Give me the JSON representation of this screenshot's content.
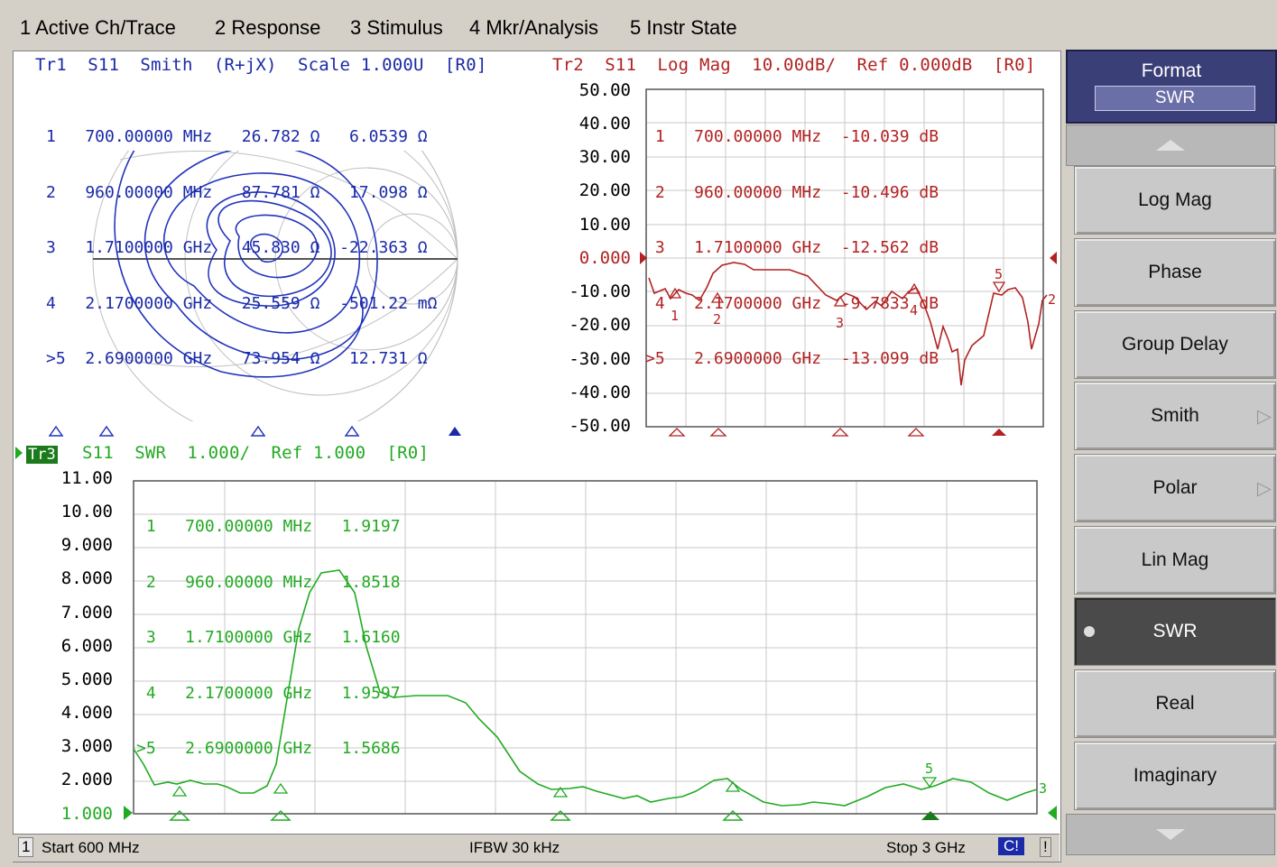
{
  "menu": [
    "1 Active Ch/Trace",
    "2 Response",
    "3 Stimulus",
    "4 Mkr/Analysis",
    "5 Instr State"
  ],
  "tr1": {
    "header": "Tr1  S11  Smith  (R+jX)  Scale 1.000U  [R0]",
    "markers": [
      "1   700.00000 MHz   26.782 Ω   6.0539 Ω",
      "2   960.00000 MHz   87.781 Ω   17.098 Ω",
      "3   1.7100000 GHz   45.830 Ω  -22.363 Ω",
      "4   2.1700000 GHz   25.559 Ω  -501.22 mΩ",
      ">5  2.6900000 GHz   73.954 Ω   12.731 Ω"
    ]
  },
  "tr2": {
    "header": "Tr2  S11  Log Mag  10.00dB/  Ref 0.000dB  [R0]",
    "yticks": [
      "50.00",
      "40.00",
      "30.00",
      "20.00",
      "10.00",
      "0.000",
      "-10.00",
      "-20.00",
      "-30.00",
      "-40.00",
      "-50.00"
    ],
    "markers": [
      " 1   700.00000 MHz  -10.039 dB",
      " 2   960.00000 MHz  -10.496 dB",
      " 3   1.7100000 GHz  -12.562 dB",
      " 4   2.1700000 GHz  -9.7833 dB",
      ">5   2.6900000 GHz  -13.099 dB"
    ],
    "marker_labels": [
      "1",
      "2",
      "3",
      "4",
      "5"
    ]
  },
  "tr3": {
    "header": "S11  SWR  1.000/  Ref 1.000  [R0]",
    "badge": "Tr3",
    "yticks": [
      "11.00",
      "10.00",
      "9.000",
      "8.000",
      "7.000",
      "6.000",
      "5.000",
      "4.000",
      "3.000",
      "2.000",
      "1.000"
    ],
    "markers": [
      " 1   700.00000 MHz   1.9197",
      " 2   960.00000 MHz   1.8518",
      " 3   1.7100000 GHz   1.6160",
      " 4   2.1700000 GHz   1.9597",
      ">5   2.6900000 GHz   1.5686"
    ],
    "marker_labels": [
      "1",
      "2",
      "3",
      "4",
      "5"
    ]
  },
  "status": {
    "channel": "1",
    "start": "Start 600 MHz",
    "ifbw": "IFBW 30 kHz",
    "stop": "Stop 3 GHz",
    "cal": "C!",
    "warn": "!"
  },
  "softkeys": {
    "title": "Format",
    "value": "SWR",
    "buttons": [
      "Log Mag",
      "Phase",
      "Group Delay",
      "Smith",
      "Polar",
      "Lin Mag",
      "SWR",
      "Real",
      "Imaginary"
    ],
    "active": "SWR"
  },
  "colors": {
    "tr1": "#1a2aa8",
    "tr2": "#b22222",
    "tr3": "#22aa22",
    "panel_head": "#3b3f78"
  }
}
